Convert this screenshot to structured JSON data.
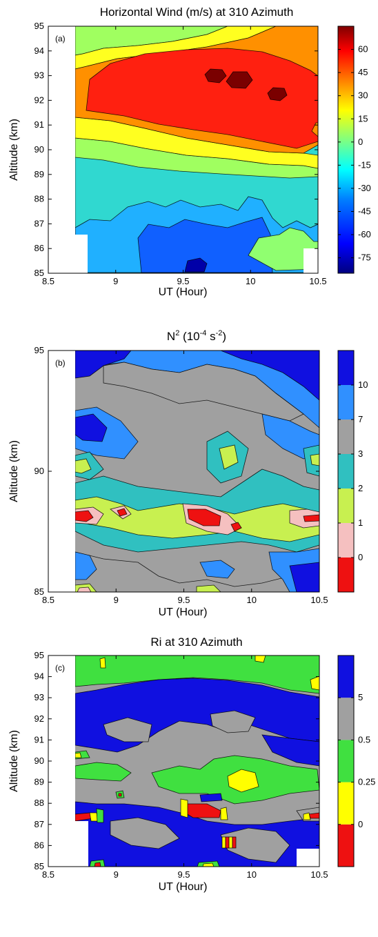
{
  "chart_data": [
    {
      "type": "heatmap",
      "panel": "(a)",
      "title": "Horizontal Wind (m/s) at 310 Azimuth",
      "xlabel": "UT (Hour)",
      "ylabel": "Altitude (km)",
      "xlim": [
        8.5,
        10.5
      ],
      "ylim": [
        85,
        95
      ],
      "xticks": [
        "8.5",
        "9",
        "9.5",
        "10",
        "10.5"
      ],
      "yticks": [
        "85",
        "86",
        "87",
        "88",
        "89",
        "90",
        "91",
        "92",
        "93",
        "94",
        "95"
      ],
      "colorbar": {
        "ticks": [
          "60",
          "45",
          "30",
          "15",
          "0",
          "-15",
          "-30",
          "-45",
          "-60",
          "-75"
        ],
        "range": [
          -85,
          75
        ],
        "stops": [
          "#00007f",
          "#0000ff",
          "#0080ff",
          "#00ffff",
          "#80ff80",
          "#ffff00",
          "#ff8000",
          "#ff0000",
          "#7f0000"
        ]
      },
      "data_start_x": 8.75,
      "layers": [
        {
          "level": -15,
          "color": "#30e0b0",
          "band": [
            [
              85,
              89.7
            ],
            [
              95,
              95
            ]
          ]
        },
        {
          "level": 0,
          "color": "#c8ff40",
          "points": [
            [
              8.75,
              90.2
            ],
            [
              9.0,
              90.1
            ],
            [
              9.5,
              89.8
            ],
            [
              10.0,
              89.6
            ],
            [
              10.5,
              89.5
            ]
          ]
        },
        {
          "level": 15,
          "color": "#ffff30",
          "points": [
            [
              8.75,
              90.6
            ],
            [
              9.0,
              90.5
            ],
            [
              9.5,
              90.3
            ],
            [
              10.0,
              90.1
            ],
            [
              10.5,
              89.9
            ]
          ]
        },
        {
          "level": 30,
          "color": "#ff9000",
          "points": [
            [
              8.75,
              91.0
            ],
            [
              9.0,
              90.9
            ],
            [
              9.5,
              90.7
            ],
            [
              10.0,
              90.4
            ],
            [
              10.5,
              90.2
            ]
          ]
        },
        {
          "level": 45,
          "color": "#ff2010",
          "points": [
            [
              8.75,
              91.3
            ],
            [
              9.0,
              91.3
            ],
            [
              9.5,
              91.1
            ],
            [
              10.0,
              90.8
            ],
            [
              10.5,
              90.6
            ]
          ]
        }
      ],
      "features": [
        {
          "level": -15,
          "color": "#30e0b0",
          "shape": "band-lower",
          "x": [
            8.75,
            10.5
          ],
          "y": [
            85,
            89.6
          ]
        },
        {
          "level": -30,
          "color": "#20b8ff",
          "shape": "blob",
          "x": [
            9.0,
            10.0
          ],
          "y": [
            85.3,
            87.4
          ]
        },
        {
          "level": -45,
          "color": "#1050ff",
          "shape": "blob",
          "x": [
            9.05,
            9.85
          ],
          "y": [
            85.4,
            86.6
          ]
        },
        {
          "level": -75,
          "color": "#0000a0",
          "shape": "blob",
          "x": [
            9.6,
            9.85
          ],
          "y": [
            85.0,
            85.5
          ]
        },
        {
          "level": 0,
          "color": "#c8ff40",
          "shape": "blob",
          "x": [
            10.05,
            10.45
          ],
          "y": [
            85.5,
            86.7
          ]
        },
        {
          "level": -15,
          "color": "#30e0b0",
          "shape": "blob",
          "x": [
            8.75,
            9.2
          ],
          "y": [
            93.3,
            95
          ]
        },
        {
          "level": 30,
          "color": "#ff9000",
          "shape": "blob",
          "x": [
            8.75,
            9.15
          ],
          "y": [
            92.6,
            94.5
          ]
        },
        {
          "level": 45,
          "color": "#ff2010",
          "shape": "blob",
          "x": [
            8.9,
            10.5
          ],
          "y": [
            90.6,
            94.4
          ]
        },
        {
          "level": 60,
          "color": "#7f0000",
          "shape": "blob",
          "x": [
            9.7,
            9.85
          ],
          "y": [
            92.7,
            93.2
          ]
        },
        {
          "level": 60,
          "color": "#7f0000",
          "shape": "blob",
          "x": [
            9.88,
            10.05
          ],
          "y": [
            92.4,
            93.0
          ]
        },
        {
          "level": 60,
          "color": "#7f0000",
          "shape": "blob",
          "x": [
            10.1,
            10.25
          ],
          "y": [
            92.0,
            92.4
          ]
        }
      ]
    },
    {
      "type": "heatmap",
      "panel": "(b)",
      "title": "N",
      "title_sup": "2",
      "title_rest": " (10",
      "title_sup2": "-4",
      "title_rest2": " s",
      "title_sup3": "-2",
      "title_end": ")",
      "xlabel": "UT (Hour)",
      "ylabel": "Altitude (km)",
      "xlim": [
        8.5,
        10.5
      ],
      "ylim": [
        85,
        95
      ],
      "xticks": [
        "8.5",
        "9",
        "9.5",
        "10",
        "10.5"
      ],
      "yticks": [
        "85",
        "90",
        "95"
      ],
      "colorbar": {
        "ticks": [
          "10",
          "7",
          "3",
          "2",
          "1",
          "0"
        ],
        "segments": [
          "#ee1111",
          "#f5c0c0",
          "#c8f050",
          "#30c0c0",
          "#a0a0a0",
          "#3090ff",
          "#1010e0"
        ]
      },
      "data_start_x": 8.75
    },
    {
      "type": "heatmap",
      "panel": "(c)",
      "title": "Ri at 310 Azimuth",
      "xlabel": "UT (Hour)",
      "ylabel": "Altitude (km)",
      "xlim": [
        8.5,
        10.5
      ],
      "ylim": [
        85,
        95
      ],
      "xticks": [
        "8.5",
        "9",
        "9.5",
        "10",
        "10.5"
      ],
      "yticks": [
        "85",
        "86",
        "87",
        "88",
        "89",
        "90",
        "91",
        "92",
        "93",
        "94",
        "95"
      ],
      "colorbar": {
        "ticks": [
          "5",
          "0.5",
          "0.25",
          "0"
        ],
        "segments": [
          "#ee1111",
          "#ffff00",
          "#40e040",
          "#a0a0a0",
          "#1010e0"
        ]
      },
      "data_start_x": 8.75
    }
  ]
}
